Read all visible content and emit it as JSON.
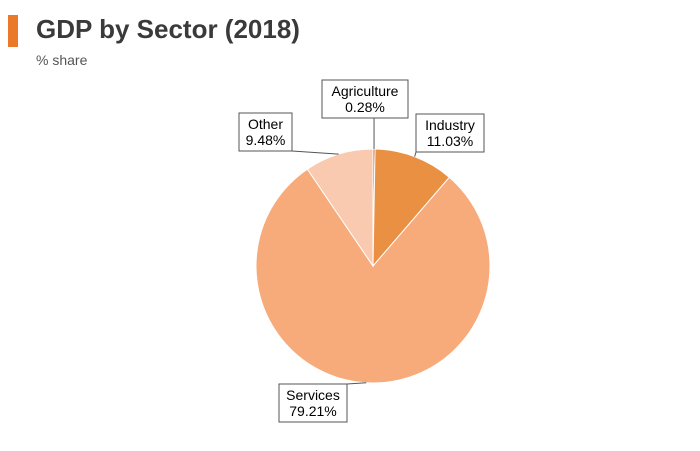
{
  "header": {
    "title": "GDP by Sector (2018)",
    "subtitle": "% share"
  },
  "colors": {
    "accent": "#ea7a2a",
    "title_text": "#3a3a3a"
  },
  "chart_data": {
    "type": "pie",
    "title": "GDP by Sector (2018)",
    "subtitle": "% share",
    "unit": "%",
    "slices": [
      {
        "name": "Agriculture",
        "value": 0.28,
        "label": "0.28%",
        "color": "#c96a25"
      },
      {
        "name": "Industry",
        "value": 11.03,
        "label": "11.03%",
        "color": "#e99043"
      },
      {
        "name": "Services",
        "value": 79.21,
        "label": "79.21%",
        "color": "#f7ab7a"
      },
      {
        "name": "Other",
        "value": 9.48,
        "label": "9.48%",
        "color": "#f9cab0"
      }
    ],
    "start_angle": "12 o'clock, clockwise",
    "legend": "none (callout labels)"
  }
}
